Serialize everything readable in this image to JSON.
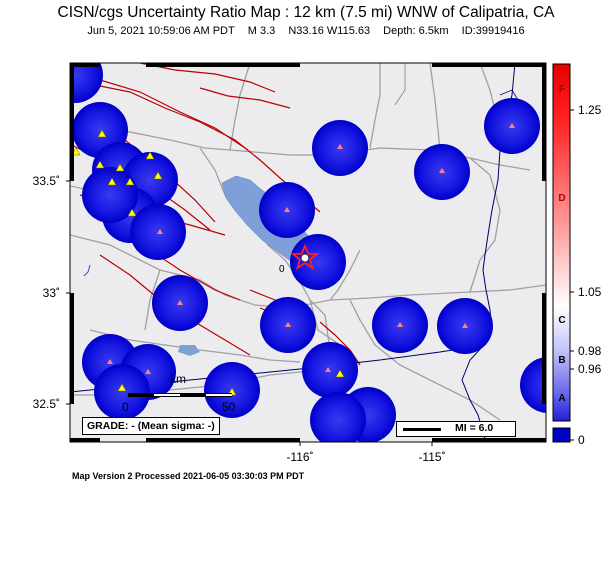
{
  "header": {
    "title": "CISN/cgs Uncertainty Ratio Map : 12 km (7.5 mi) WNW of Calipatria, CA",
    "date": "Jun  5, 2021 10:59:06 AM PDT",
    "magnitude": "M 3.3",
    "location": "N33.16 W115.63",
    "depth": "Depth: 6.5km",
    "event_id": "ID:39919416"
  },
  "axes": {
    "lat_labels": [
      "33.5˚",
      "33˚",
      "32.5˚"
    ],
    "lon_labels": [
      "-116˚",
      "-115˚"
    ]
  },
  "colorbar": {
    "value_labels": [
      "1.25",
      "1.05",
      "0.98",
      "0.96",
      "0"
    ],
    "grade_letters": [
      "F",
      "D",
      "C",
      "B",
      "A"
    ],
    "colors": {
      "top": "#e60000",
      "mid": "#ffffff",
      "bottom": "#0000c8"
    }
  },
  "legend": {
    "grade": "GRADE: - (Mean sigma: -)",
    "mi": "MI = 6.0",
    "scale_unit": "km",
    "scale_start": "0",
    "scale_end": "50"
  },
  "epicenter_label": "0",
  "footer": "Map Version 2 Processed 2021-06-05 03:30:03 PM PDT",
  "map_colors": {
    "land": "#ececee",
    "lake": "#7f9fd8",
    "station_disc": "#0000d8",
    "fault": "#bb0000",
    "border": "#000066"
  }
}
